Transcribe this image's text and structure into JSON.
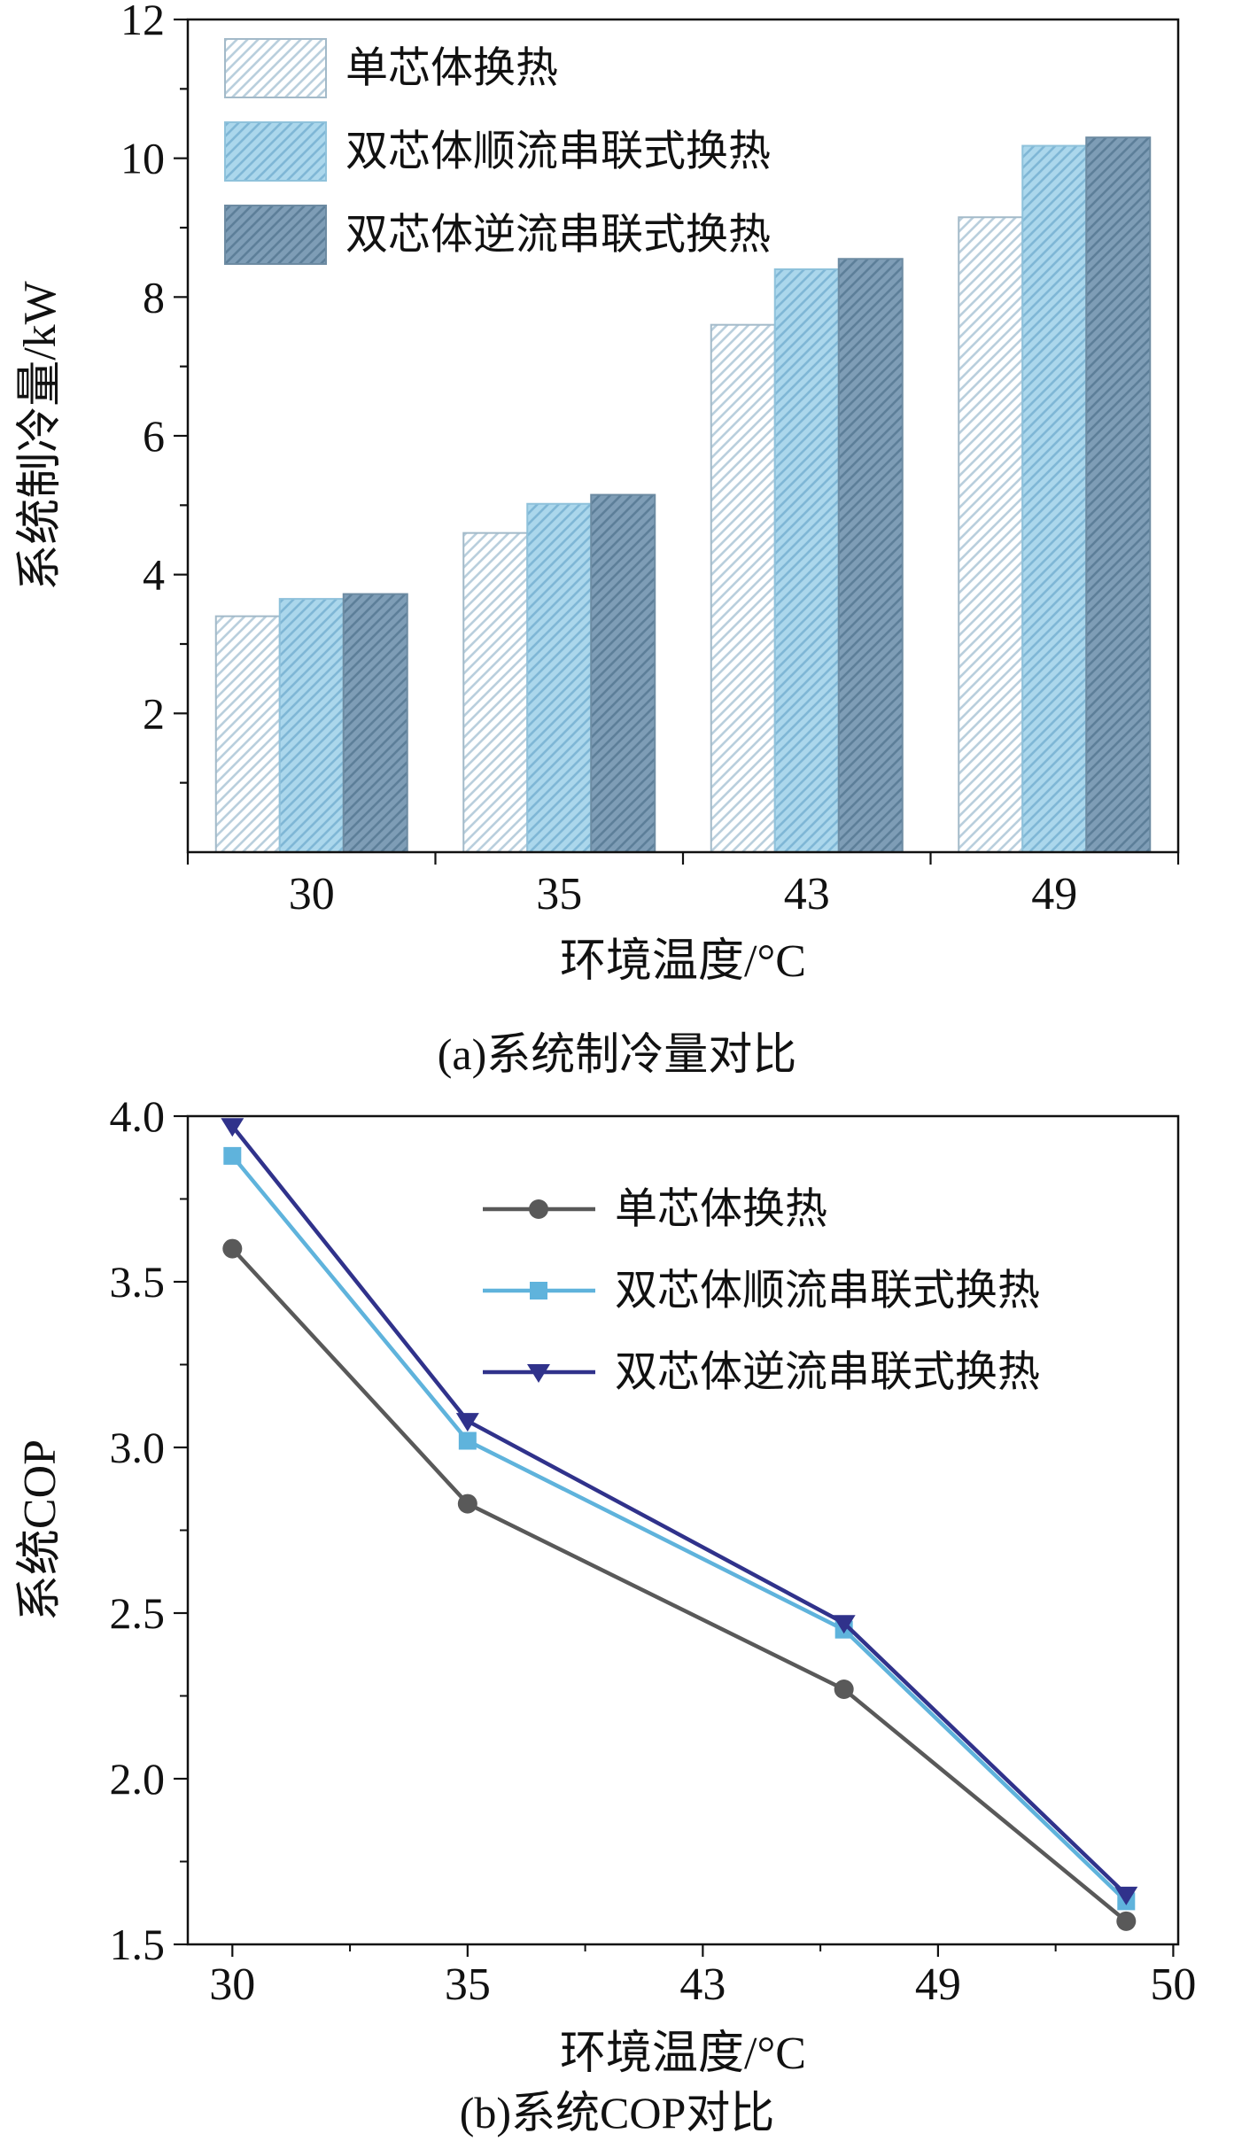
{
  "page": {
    "background": "#ffffff",
    "frame_color": "#111111",
    "text_color": "#111111"
  },
  "chart_data": [
    {
      "id": "cooling_capacity",
      "type": "bar",
      "caption": "(a)系统制冷量对比",
      "xlabel": "环境温度/°C",
      "ylabel": "系统制冷量/kW",
      "categories": [
        "30",
        "35",
        "43",
        "49"
      ],
      "ylim": [
        0,
        12
      ],
      "yticks": [
        2,
        4,
        6,
        8,
        10,
        12
      ],
      "grid": false,
      "legend_position": "top-left",
      "series": [
        {
          "name": "单芯体换热",
          "values": [
            3.4,
            4.6,
            7.6,
            9.15
          ],
          "fill": "#ffffff",
          "hatch": "#b9cfdd",
          "edge": "#a3bac9"
        },
        {
          "name": "双芯体顺流串联式换热",
          "values": [
            3.65,
            5.02,
            8.4,
            10.18
          ],
          "fill": "#abd7ec",
          "hatch": "#7fb7d6",
          "edge": "#8fc2db"
        },
        {
          "name": "双芯体逆流串联式换热",
          "values": [
            3.72,
            5.15,
            8.55,
            10.3
          ],
          "fill": "#7e9db6",
          "hatch": "#5d7f99",
          "edge": "#6d8ba2"
        }
      ]
    },
    {
      "id": "cop",
      "type": "line",
      "caption": "(b)系统COP对比",
      "xlabel": "环境温度/°C",
      "ylabel": "系统COP",
      "x": [
        30,
        35,
        43,
        49
      ],
      "xlim": [
        30,
        50
      ],
      "xticks": {
        "labels": [
          "30",
          "35",
          "43",
          "49",
          "50"
        ],
        "spacing": "even"
      },
      "ylim": [
        1.5,
        4.0
      ],
      "yticks": [
        "1.5",
        "2.0",
        "2.5",
        "3.0",
        "3.5",
        "4.0"
      ],
      "grid": false,
      "legend_position": "top-right",
      "series": [
        {
          "name": "单芯体换热",
          "values": [
            3.6,
            2.83,
            2.27,
            1.57
          ],
          "marker": "circle",
          "color": "#595959"
        },
        {
          "name": "双芯体顺流串联式换热",
          "values": [
            3.88,
            3.02,
            2.45,
            1.63
          ],
          "marker": "square",
          "color": "#5fb3dc"
        },
        {
          "name": "双芯体逆流串联式换热",
          "values": [
            3.97,
            3.08,
            2.47,
            1.65
          ],
          "marker": "triangle-down",
          "color": "#30328b"
        }
      ]
    }
  ]
}
